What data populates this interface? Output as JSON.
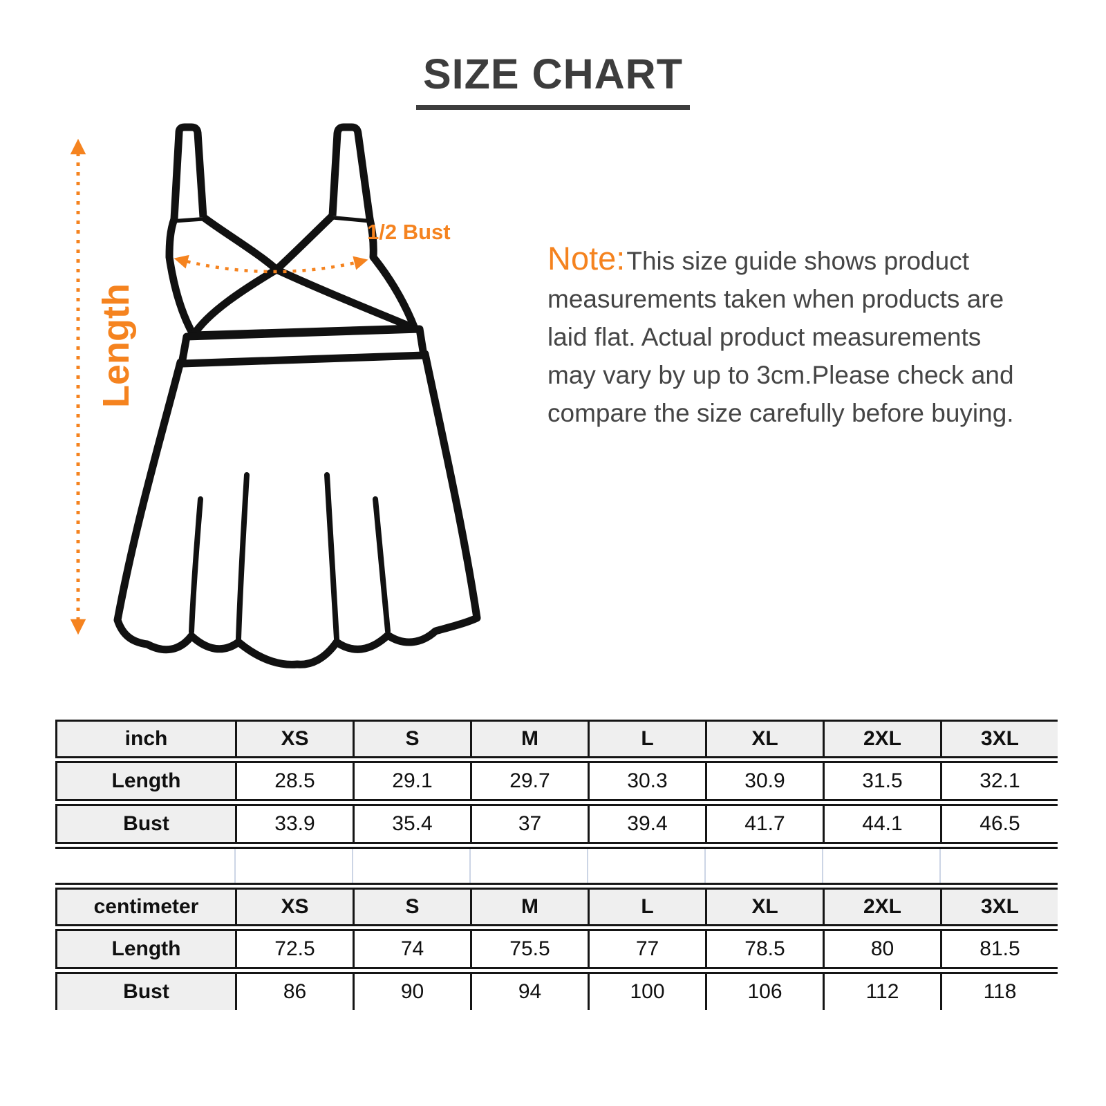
{
  "page": {
    "title": "SIZE CHART"
  },
  "diagram": {
    "length_label": "Length",
    "bust_label": "1/2 Bust"
  },
  "note": {
    "label": "Note:",
    "lines": [
      "This size guide shows product",
      "measurements taken when products are",
      "laid flat. Actual product measurements",
      "may vary by up to 3cm.Please check and",
      "compare the size carefully before buying."
    ]
  },
  "tables": [
    {
      "unit_label": "inch",
      "sizes": [
        "XS",
        "S",
        "M",
        "L",
        "XL",
        "2XL",
        "3XL"
      ],
      "rows": [
        {
          "label": "Length",
          "values": [
            "28.5",
            "29.1",
            "29.7",
            "30.3",
            "30.9",
            "31.5",
            "32.1"
          ]
        },
        {
          "label": "Bust",
          "values": [
            "33.9",
            "35.4",
            "37",
            "39.4",
            "41.7",
            "44.1",
            "46.5"
          ]
        }
      ]
    },
    {
      "unit_label": "centimeter",
      "sizes": [
        "XS",
        "S",
        "M",
        "L",
        "XL",
        "2XL",
        "3XL"
      ],
      "rows": [
        {
          "label": "Length",
          "values": [
            "72.5",
            "74",
            "75.5",
            "77",
            "78.5",
            "80",
            "81.5"
          ]
        },
        {
          "label": "Bust",
          "values": [
            "86",
            "90",
            "94",
            "100",
            "106",
            "112",
            "118"
          ]
        }
      ]
    }
  ],
  "colors": {
    "accent_orange": "#f5831f",
    "dress_outline": "#111111",
    "title_text": "#3d3d3d",
    "note_text": "#454545",
    "table_border": "#151515",
    "table_header_bg": "#efefef",
    "spacer_gridline": "#ccd5e5"
  }
}
